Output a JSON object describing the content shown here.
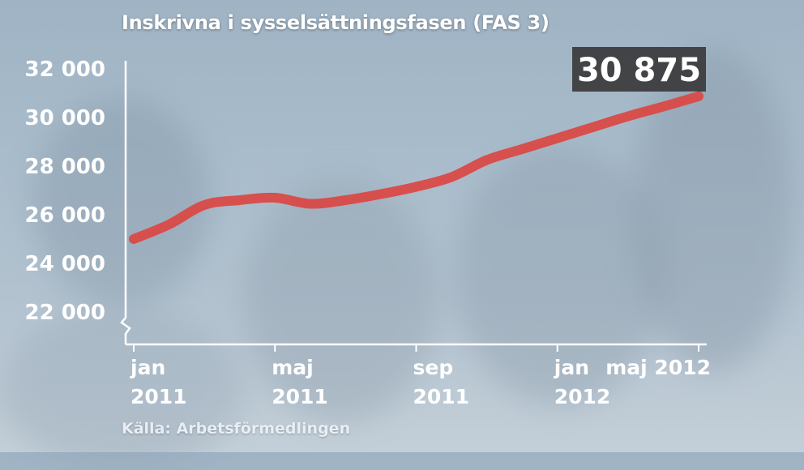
{
  "chart_data": {
    "type": "line",
    "title": "Inskrivna i sysselsättningsfasen (FAS 3)",
    "source": "Källa: Arbetsförmedlingen",
    "ylim": [
      21500,
      33000
    ],
    "yticks": [
      {
        "value": 32000,
        "label": "32 000"
      },
      {
        "value": 30000,
        "label": "30 000"
      },
      {
        "value": 28000,
        "label": "28 000"
      },
      {
        "value": 26000,
        "label": "26 000"
      },
      {
        "value": 24000,
        "label": "24 000"
      },
      {
        "value": 22000,
        "label": "22 000"
      }
    ],
    "xlim": [
      0,
      16
    ],
    "xticks": [
      {
        "value": 0,
        "line1": "jan",
        "line2": "2011"
      },
      {
        "value": 4,
        "line1": "maj",
        "line2": "2011"
      },
      {
        "value": 8,
        "line1": "sep",
        "line2": "2011"
      },
      {
        "value": 12,
        "line1": "jan",
        "line2": "2012"
      },
      {
        "value": 16,
        "line1": "maj 2012",
        "line2": ""
      }
    ],
    "series": [
      {
        "color": "#d94a47",
        "x": [
          0,
          1,
          2,
          3,
          4,
          5,
          6,
          7,
          8,
          9,
          10,
          11,
          12,
          13,
          14,
          15,
          16
        ],
        "values": [
          25000,
          25600,
          26400,
          26600,
          26700,
          26450,
          26600,
          26850,
          27150,
          27550,
          28250,
          28700,
          29150,
          29600,
          30050,
          30450,
          30875
        ]
      }
    ],
    "callout": {
      "label": "30 875",
      "x": 16,
      "value": 30875
    },
    "grid": false,
    "axis_break": true
  }
}
